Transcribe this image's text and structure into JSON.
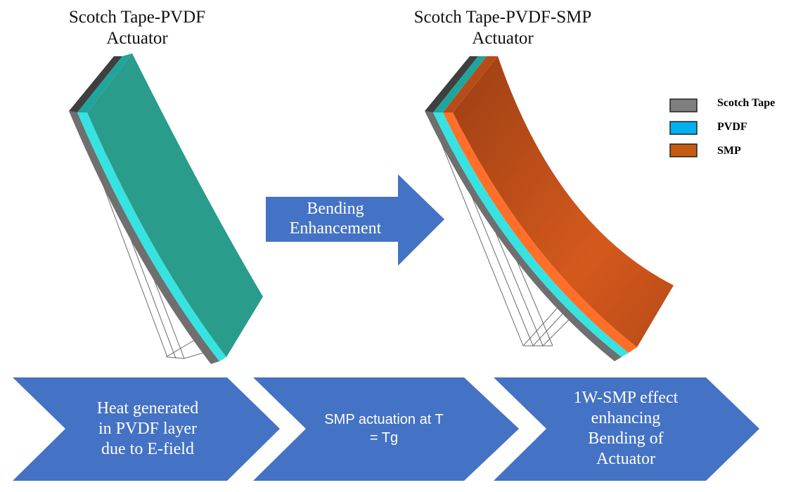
{
  "titles": {
    "left": [
      "Scotch Tape-PVDF",
      "Actuator"
    ],
    "right": [
      "Scotch Tape-PVDF-SMP",
      "Actuator"
    ]
  },
  "legend": [
    {
      "label": "Scotch Tape",
      "color": "#7f7f7f"
    },
    {
      "label": "PVDF",
      "color": "#00b0f0"
    },
    {
      "label": "SMP",
      "color": "#c55a11"
    }
  ],
  "middle_arrow": {
    "lines": [
      "Bending",
      "Enhancement"
    ],
    "color": "#4472c4"
  },
  "process_steps": [
    {
      "lines": [
        "Heat generated",
        "in PVDF layer",
        "due to E-field"
      ]
    },
    {
      "lines": [
        "SMP actuation at T",
        "= Tg"
      ]
    },
    {
      "lines": [
        "1W-SMP effect",
        "enhancing",
        "Bending of",
        "Actuator"
      ]
    }
  ],
  "colors": {
    "tape": "#6f6f6f",
    "tape_dark": "#3f3f3f",
    "pvdf": "#37e3e0",
    "pvdf_top": "#1fa59c",
    "green_layer": "#2a9c8c",
    "smp": "#c2531c",
    "smp_edge": "#ff6f2a",
    "chevron": "#4472c4"
  }
}
